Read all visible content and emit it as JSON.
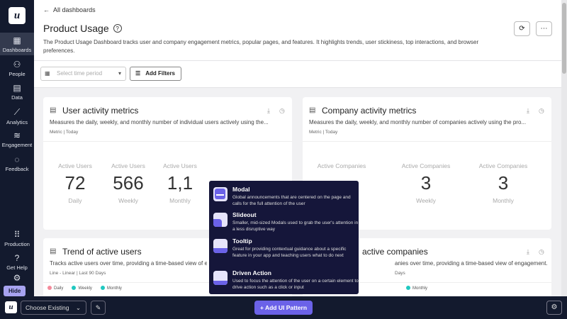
{
  "sidebar": {
    "items": [
      {
        "label": "Dashboards",
        "icon": "dashboard-icon",
        "active": true
      },
      {
        "label": "People",
        "icon": "people-icon"
      },
      {
        "label": "Data",
        "icon": "data-icon"
      },
      {
        "label": "Analytics",
        "icon": "analytics-icon"
      },
      {
        "label": "Engagement",
        "icon": "layers-icon"
      },
      {
        "label": "Feedback",
        "icon": "chat-icon"
      }
    ],
    "bottom": [
      {
        "label": "Production",
        "icon": "grid-icon"
      },
      {
        "label": "Get Help",
        "icon": "help-icon"
      },
      {
        "label": "Settings",
        "icon": "gear-icon"
      }
    ],
    "hide_label": "Hide"
  },
  "header": {
    "back": "All dashboards",
    "title": "Product Usage",
    "description": "The Product Usage Dashboard tracks user and company engagement metrics, popular pages, and features. It highlights trends, user stickiness, top interactions, and browser preferences."
  },
  "filters": {
    "time_placeholder": "Select time period",
    "add_filters": "Add Filters"
  },
  "cards": [
    {
      "title": "User activity metrics",
      "desc": "Measures the daily, weekly, and monthly number of individual users actively using the...",
      "meta": "Metric | Today",
      "stats": [
        {
          "label": "Active Users",
          "value": "72",
          "period": "Daily"
        },
        {
          "label": "Active Users",
          "value": "566",
          "period": "Weekly"
        },
        {
          "label": "Active Users",
          "value": "1,1",
          "period": "Monthly"
        }
      ]
    },
    {
      "title": "Company activity metrics",
      "desc": "Measures the daily, weekly, and monthly number of companies actively using the pro...",
      "meta": "Metric | Today",
      "stats": [
        {
          "label": "Active Companies",
          "value": "",
          "period": ""
        },
        {
          "label": "Active Companies",
          "value": "3",
          "period": "Weekly"
        },
        {
          "label": "Active Companies",
          "value": "3",
          "period": "Monthly"
        }
      ]
    },
    {
      "title": "Trend of active users",
      "desc": "Tracks active users over time, providing a time-based view of e",
      "meta": "Line - Linear | Last 90 Days",
      "legend": [
        "Daily",
        "Weekly",
        "Monthly"
      ]
    },
    {
      "title": "active companies",
      "desc": "anies over time, providing a time-based view of engagement.",
      "meta": "Days",
      "legend": [
        "Monthly"
      ]
    }
  ],
  "legend_colors": {
    "Daily": "#f48a9b",
    "Weekly": "#1fc8c0",
    "Monthly": "#1fc8c0"
  },
  "popup": {
    "items": [
      {
        "title": "Modal",
        "desc": "Global announcements that are centered on the page and calls for the full attention of the user"
      },
      {
        "title": "Slideout",
        "desc": "Smaller, mid-sized Modals used to grab the user's attention in a less disruptive way"
      },
      {
        "title": "Tooltip",
        "desc": "Great for providing contextual guidance about a specific feature in your app and teaching users what to do next"
      },
      {
        "title": "Driven Action",
        "desc": "Used to focus the attention of the user on a certain element to drive action such as a click or input"
      }
    ]
  },
  "bottombar": {
    "choose": "Choose Existing",
    "add_pattern": "+ Add UI Pattern"
  },
  "accent": "#6b62e8"
}
